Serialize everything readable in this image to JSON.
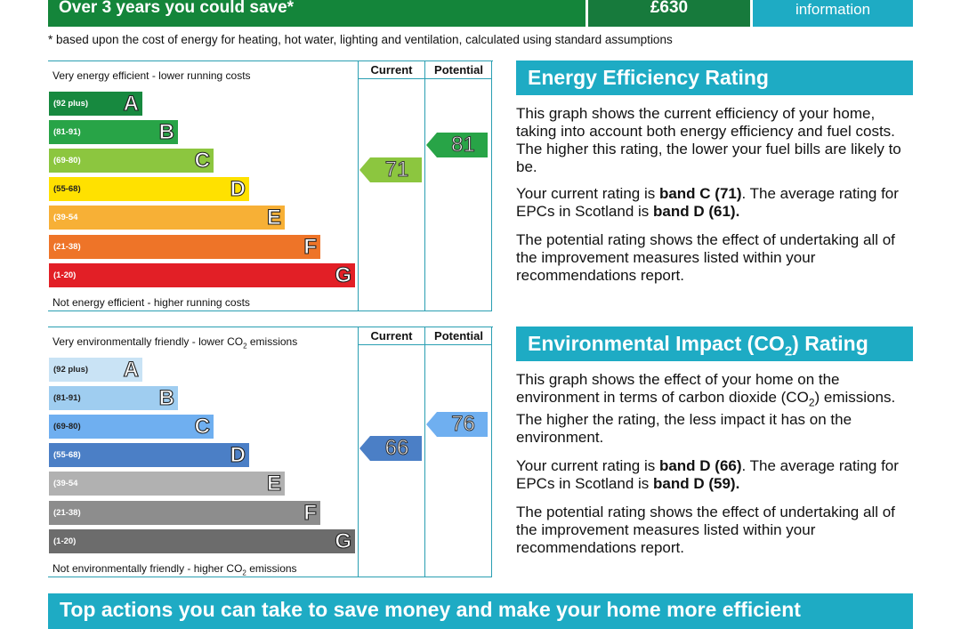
{
  "top_banner": {
    "savings_label": "Over 3 years you could save*",
    "savings_value": "£630",
    "info_label": "information"
  },
  "footnote": "* based upon the cost of energy for heating, hot water, lighting and ventilation, calculated using standard assumptions",
  "energy_chart": {
    "col_current": "Current",
    "col_potential": "Potential",
    "top_label": "Very energy efficient - lower running costs",
    "bottom_label": "Not energy efficient - higher running costs",
    "bands": [
      {
        "range": "(92 plus)",
        "letter": "A",
        "color": "#17893f"
      },
      {
        "range": "(81-91)",
        "letter": "B",
        "color": "#28a447"
      },
      {
        "range": "(69-80)",
        "letter": "C",
        "color": "#8cc63f"
      },
      {
        "range": "(55-68)",
        "letter": "D",
        "color": "#ffe100"
      },
      {
        "range": "(39-54",
        "letter": "E",
        "color": "#f7b036"
      },
      {
        "range": "(21-38)",
        "letter": "F",
        "color": "#ee7428"
      },
      {
        "range": "(1-20)",
        "letter": "G",
        "color": "#e21f26"
      }
    ],
    "current": {
      "value": "71",
      "color": "#8cc63f"
    },
    "potential": {
      "value": "81",
      "color": "#28a447"
    }
  },
  "co2_chart": {
    "col_current": "Current",
    "col_potential": "Potential",
    "top_label_a": "Very environmentally friendly - lower CO",
    "top_label_sub": "2",
    "top_label_b": " emissions",
    "bottom_label_a": "Not environmentally friendly - higher CO",
    "bottom_label_sub": "2",
    "bottom_label_b": " emissions",
    "bands": [
      {
        "range": "(92 plus)",
        "letter": "A",
        "color": "#c9e3f5"
      },
      {
        "range": "(81-91)",
        "letter": "B",
        "color": "#9fcdf0"
      },
      {
        "range": "(69-80)",
        "letter": "C",
        "color": "#6faff0"
      },
      {
        "range": "(55-68)",
        "letter": "D",
        "color": "#4b7fc6"
      },
      {
        "range": "(39-54",
        "letter": "E",
        "color": "#b1b1b1"
      },
      {
        "range": "(21-38)",
        "letter": "F",
        "color": "#8d8d8d"
      },
      {
        "range": "(1-20)",
        "letter": "G",
        "color": "#6c6c6c"
      }
    ],
    "current": {
      "value": "66",
      "color": "#4b7fc6"
    },
    "potential": {
      "value": "76",
      "color": "#6faff0"
    }
  },
  "energy_panel": {
    "title": "Energy Efficiency Rating",
    "p1": "This graph shows the current efficiency of your home, taking into account both energy efficiency and fuel costs. The higher this rating, the lower your fuel bills are likely to be.",
    "p2_a": "Your current rating is ",
    "p2_b": "band C (71)",
    "p2_c": ". The average rating for EPCs in Scotland is ",
    "p2_d": "band D (61).",
    "p3": "The potential rating shows the effect of undertaking all of the improvement measures listed within your recommendations report."
  },
  "co2_panel": {
    "title_a": "Environmental Impact (CO",
    "title_sub": "2",
    "title_b": ") Rating",
    "p1_a": "This graph shows the effect of your home on the environment in terms of carbon dioxide (CO",
    "p1_sub": "2",
    "p1_b": ") emissions. The higher the rating, the less impact it has on the environment.",
    "p2_a": "Your current rating is ",
    "p2_b": "band D (66)",
    "p2_c": ". The average rating for EPCs in Scotland is ",
    "p2_d": "band D (59).",
    "p3": "The potential rating shows the effect of undertaking all of the improvement measures listed within your recommendations report."
  },
  "bottom_banner": "Top actions you can take to save money and make your home more efficient"
}
